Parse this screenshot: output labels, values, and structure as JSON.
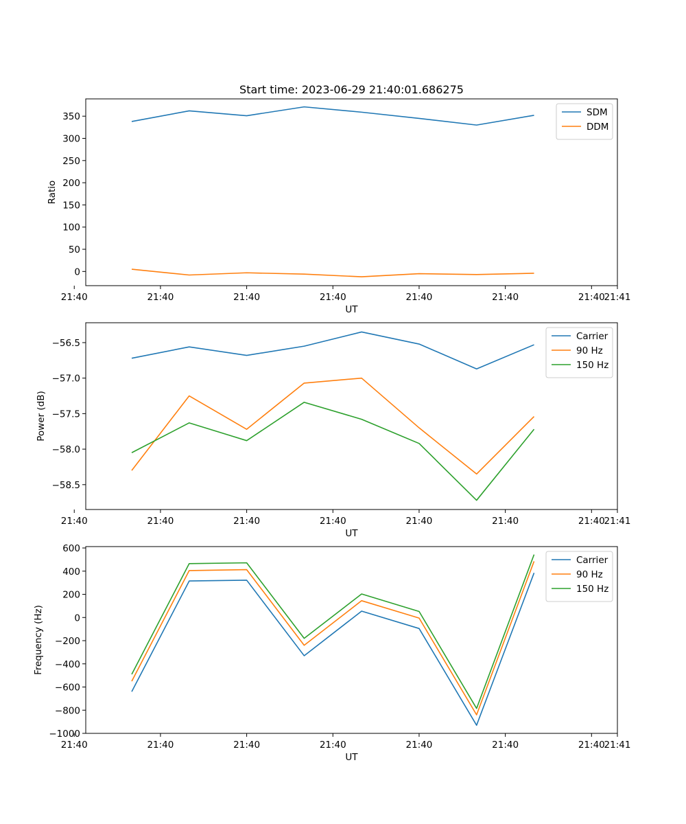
{
  "figure": {
    "title": "Start time: 2023-06-29 21:40:01.686275"
  },
  "chart_data": [
    {
      "type": "line",
      "title": "Start time: 2023-06-29 21:40:01.686275",
      "xlabel": "UT",
      "ylabel": "Ratio",
      "x": [
        1,
        2,
        3,
        4,
        5,
        6,
        7,
        8
      ],
      "xlim": [
        0.2,
        9.45
      ],
      "x_ticks": [
        0,
        1.5,
        3,
        4.5,
        6,
        7.5,
        9
      ],
      "x_tick_labels": [
        "21:40",
        "21:40",
        "21:40",
        "21:40",
        "21:40",
        "21:40",
        "21:40"
      ],
      "x_extra_tick": {
        "x": 9.45,
        "label": "21:41"
      },
      "ylim": [
        -32,
        389
      ],
      "y_ticks": [
        0,
        50,
        100,
        150,
        200,
        250,
        300,
        350
      ],
      "series": [
        {
          "name": "SDM",
          "color": "#1f77b4",
          "values": [
            338,
            362,
            351,
            371,
            359,
            345,
            330,
            352
          ]
        },
        {
          "name": "DDM",
          "color": "#ff7f0e",
          "values": [
            5,
            -8,
            -3,
            -6,
            -12,
            -5,
            -7,
            -4
          ]
        }
      ],
      "legend": "top-right",
      "grid": false
    },
    {
      "type": "line",
      "xlabel": "UT",
      "ylabel": "Power (dB)",
      "x": [
        1,
        2,
        3,
        4,
        5,
        6,
        7,
        8
      ],
      "xlim": [
        0.2,
        9.45
      ],
      "x_ticks": [
        0,
        1.5,
        3,
        4.5,
        6,
        7.5,
        9
      ],
      "x_tick_labels": [
        "21:40",
        "21:40",
        "21:40",
        "21:40",
        "21:40",
        "21:40",
        "21:40"
      ],
      "x_extra_tick": {
        "x": 9.45,
        "label": "21:41"
      },
      "ylim": [
        -58.85,
        -56.22
      ],
      "y_ticks": [
        -58.5,
        -58.0,
        -57.5,
        -57.0,
        -56.5
      ],
      "y_tick_labels": [
        "−58.5",
        "−58.0",
        "−57.5",
        "−57.0",
        "−56.5"
      ],
      "series": [
        {
          "name": "Carrier",
          "color": "#1f77b4",
          "values": [
            -56.72,
            -56.56,
            -56.68,
            -56.55,
            -56.35,
            -56.52,
            -56.87,
            -56.53
          ]
        },
        {
          "name": "90 Hz",
          "color": "#ff7f0e",
          "values": [
            -58.3,
            -57.25,
            -57.72,
            -57.07,
            -57.0,
            -57.7,
            -58.35,
            -57.54
          ]
        },
        {
          "name": "150 Hz",
          "color": "#2ca02c",
          "values": [
            -58.05,
            -57.63,
            -57.88,
            -57.34,
            -57.58,
            -57.92,
            -58.72,
            -57.72
          ]
        }
      ],
      "legend": "top-right",
      "grid": false
    },
    {
      "type": "line",
      "xlabel": "UT",
      "ylabel": "Frequency (Hz)",
      "x": [
        1,
        2,
        3,
        4,
        5,
        6,
        7,
        8
      ],
      "xlim": [
        0.2,
        9.45
      ],
      "x_ticks": [
        0,
        1.5,
        3,
        4.5,
        6,
        7.5,
        9
      ],
      "x_tick_labels": [
        "21:40",
        "21:40",
        "21:40",
        "21:40",
        "21:40",
        "21:40",
        "21:40"
      ],
      "x_extra_tick": {
        "x": 9.45,
        "label": "21:41"
      },
      "ylim": [
        -1000,
        612
      ],
      "y_ticks": [
        -1000,
        -800,
        -600,
        -400,
        -200,
        0,
        200,
        400,
        600
      ],
      "y_tick_labels": [
        "−1000",
        "−800",
        "−600",
        "−400",
        "−200",
        "0",
        "200",
        "400",
        "600"
      ],
      "series": [
        {
          "name": "Carrier",
          "color": "#1f77b4",
          "values": [
            -640,
            315,
            322,
            -330,
            55,
            -95,
            -930,
            385
          ]
        },
        {
          "name": "90 Hz",
          "color": "#ff7f0e",
          "values": [
            -550,
            405,
            413,
            -240,
            145,
            -5,
            -840,
            485
          ]
        },
        {
          "name": "150 Hz",
          "color": "#2ca02c",
          "values": [
            -490,
            465,
            472,
            -180,
            203,
            52,
            -785,
            543
          ]
        }
      ],
      "legend": "top-right",
      "grid": false
    }
  ]
}
